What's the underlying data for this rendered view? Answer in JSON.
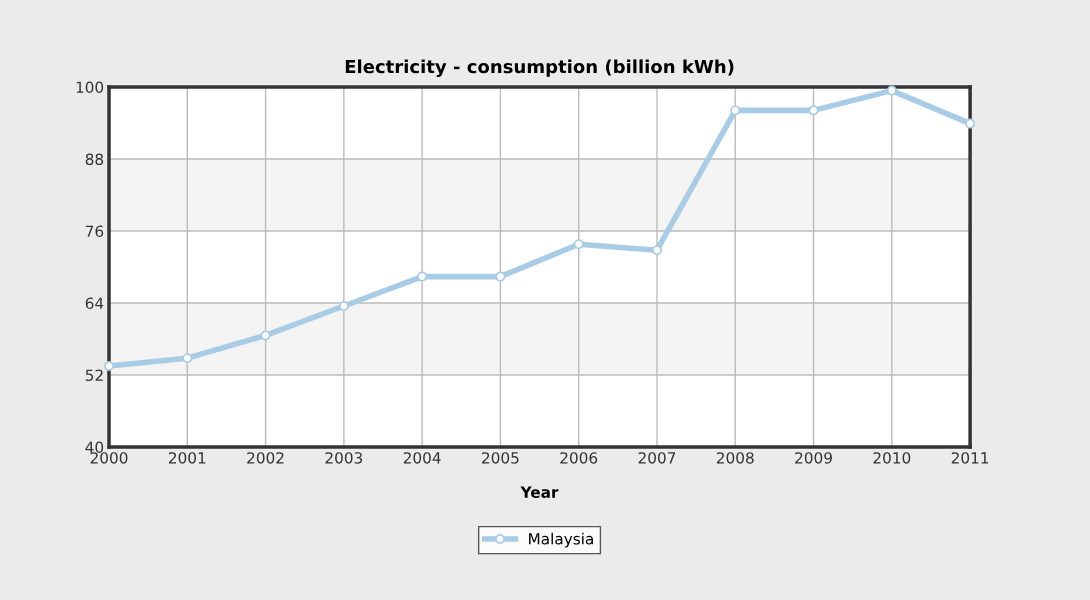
{
  "chart_data": {
    "type": "line",
    "title": "Electricity - consumption (billion kWh)",
    "xlabel": "Year",
    "x": [
      2000,
      2001,
      2002,
      2003,
      2004,
      2005,
      2006,
      2007,
      2008,
      2009,
      2010,
      2011
    ],
    "series": [
      {
        "name": "Malaysia",
        "color": "#a8cce6",
        "values": [
          53.5,
          54.8,
          58.6,
          63.5,
          68.4,
          68.4,
          73.8,
          72.8,
          96.1,
          96.1,
          99.4,
          93.9
        ]
      }
    ],
    "xlim": [
      2000,
      2011
    ],
    "xticks": [
      2000,
      2001,
      2002,
      2003,
      2004,
      2005,
      2006,
      2007,
      2008,
      2009,
      2010,
      2011
    ],
    "ylim": [
      40,
      100
    ],
    "yticks": [
      40,
      52,
      64,
      76,
      88,
      100
    ],
    "grid": true,
    "legend": "bottom",
    "marker": "circle",
    "line_style": "solid"
  }
}
